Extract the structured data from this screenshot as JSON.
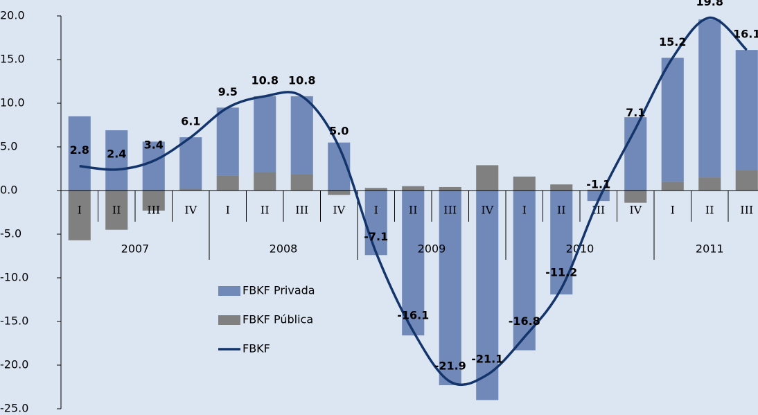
{
  "chart_data": {
    "type": "bar_line",
    "groups": [
      {
        "label": "2007",
        "categories": [
          "I",
          "II",
          "III",
          "IV"
        ]
      },
      {
        "label": "2008",
        "categories": [
          "I",
          "II",
          "III",
          "IV"
        ]
      },
      {
        "label": "2009",
        "categories": [
          "I",
          "II",
          "III",
          "IV"
        ]
      },
      {
        "label": "2010",
        "categories": [
          "I",
          "II",
          "III",
          "IV"
        ]
      },
      {
        "label": "2011",
        "categories": [
          "I",
          "II",
          "III"
        ]
      }
    ],
    "series": [
      {
        "name": "FBKF Privada",
        "type": "bar",
        "color": "#7089b8",
        "values": [
          8.5,
          6.9,
          5.6,
          5.9,
          7.8,
          8.7,
          8.9,
          5.5,
          -7.4,
          -16.6,
          -22.3,
          -24.0,
          -18.3,
          -11.9,
          -1.2,
          8.4,
          14.2,
          18.1,
          13.8
        ]
      },
      {
        "name": "FBKF Pública",
        "type": "bar",
        "color": "#808080",
        "values": [
          -5.7,
          -4.5,
          -2.3,
          0.2,
          1.7,
          2.1,
          1.9,
          -0.5,
          0.3,
          0.5,
          0.4,
          2.9,
          1.6,
          0.7,
          0.1,
          -1.4,
          1.0,
          1.5,
          2.3
        ]
      },
      {
        "name": "FBKF",
        "type": "line",
        "color": "#14356b",
        "values": [
          2.8,
          2.4,
          3.4,
          6.1,
          9.5,
          10.8,
          10.8,
          5.0,
          -7.1,
          -16.1,
          -21.9,
          -21.1,
          -16.8,
          -11.2,
          -1.1,
          7.1,
          15.2,
          19.8,
          16.1
        ],
        "value_labels": [
          "2.8",
          "2.4",
          "3.4",
          "6.1",
          "9.5",
          "10.8",
          "10.8",
          "5.0",
          "-7.1",
          "-16.1",
          "-21.9",
          "-21.1",
          "-16.8",
          "-11.2",
          "-1.1",
          "7.1",
          "15.2",
          "19.8",
          "16.1"
        ]
      }
    ],
    "ylim": [
      -25,
      20
    ],
    "yticks": [
      {
        "value": -25,
        "label": "-25.0"
      },
      {
        "value": -20,
        "label": "-20.0"
      },
      {
        "value": -15,
        "label": "-15.0"
      },
      {
        "value": -10,
        "label": "-10.0"
      },
      {
        "value": -5,
        "label": "-5.0"
      },
      {
        "value": 0,
        "label": "0.0"
      },
      {
        "value": 5,
        "label": "5.0"
      },
      {
        "value": 10,
        "label": "10.0"
      },
      {
        "value": 15,
        "label": "15.0"
      },
      {
        "value": 20,
        "label": "20.0"
      }
    ]
  }
}
